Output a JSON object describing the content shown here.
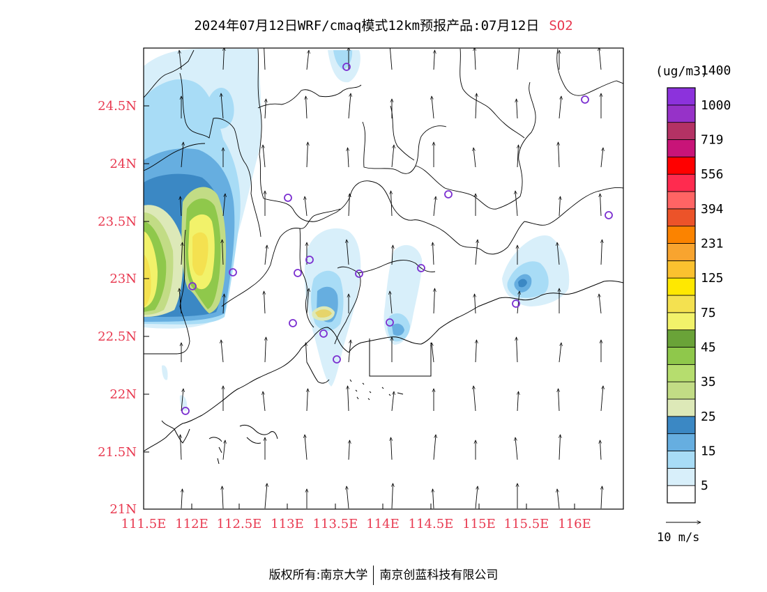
{
  "title": {
    "text": "2024年07月12日WRF/cmaq模式12km预报产品:07月12日",
    "pollutant": "SO2"
  },
  "map": {
    "lat_ticks": [
      "24.5N",
      "24N",
      "23.5N",
      "23N",
      "22.5N",
      "22N",
      "21.5N",
      "21N"
    ],
    "lon_ticks": [
      "111.5E",
      "112E",
      "112.5E",
      "113E",
      "113.5E",
      "114E",
      "114.5E",
      "115E",
      "115.5E",
      "116E"
    ],
    "wind_direction": "south-to-north (southerly wind)",
    "station_marker_color": "#7b2fd0",
    "coast_color": "#000000"
  },
  "colorbar": {
    "unit": "(ug/m3)",
    "colors": [
      "#ffffff",
      "#d8effa",
      "#a8dcf6",
      "#66aee0",
      "#3b88c4",
      "#dde9b8",
      "#c2dc85",
      "#b6dd6e",
      "#8fc84b",
      "#6aa338",
      "#f2f26a",
      "#f4e150",
      "#ffe800",
      "#fbc12f",
      "#f8a42f",
      "#fb8300",
      "#ec5329",
      "#ff6464",
      "#ff2b4f",
      "#ff0000",
      "#c81478",
      "#b43264",
      "#9632c8",
      "#8c32dc"
    ],
    "labels": [
      "5",
      "15",
      "25",
      "35",
      "45",
      "75",
      "125",
      "231",
      "394",
      "556",
      "719",
      "1000",
      "1400"
    ]
  },
  "scale": {
    "label": "10 m/s"
  },
  "footer": {
    "left": "版权所有:南京大学",
    "right": "南京创蓝科技有限公司"
  }
}
